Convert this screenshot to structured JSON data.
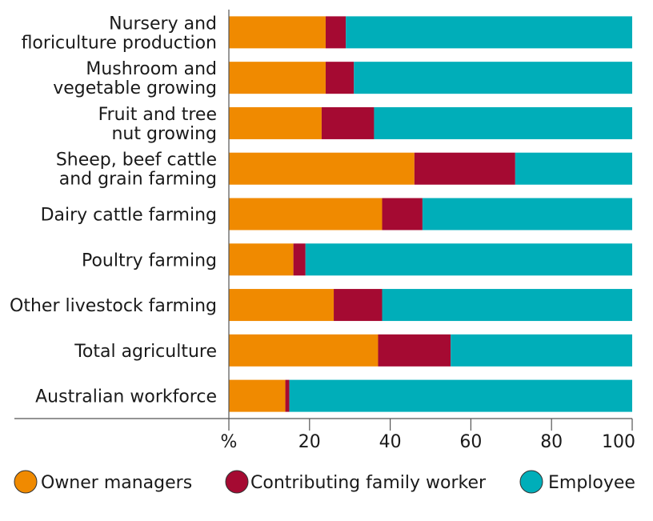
{
  "chart_data": {
    "type": "bar",
    "orientation": "horizontal",
    "stacked": true,
    "categories": [
      [
        "Nursery and",
        "floriculture production"
      ],
      [
        "Mushroom and",
        "vegetable growing"
      ],
      [
        "Fruit and tree",
        "nut growing"
      ],
      [
        "Sheep, beef cattle",
        "and grain farming"
      ],
      [
        "Dairy cattle farming"
      ],
      [
        "Poultry farming"
      ],
      [
        "Other livestock farming"
      ],
      [
        "Total agriculture"
      ],
      [
        "Australian workforce"
      ]
    ],
    "series": [
      {
        "name": "Owner managers",
        "color": "#f08a00",
        "values": [
          24,
          24,
          23,
          46,
          38,
          16,
          26,
          37,
          14
        ]
      },
      {
        "name": "Contributing family worker",
        "color": "#a50a32",
        "values": [
          5,
          7,
          13,
          25,
          10,
          3,
          12,
          18,
          1
        ]
      },
      {
        "name": "Employee",
        "color": "#00aeb9",
        "values": [
          71,
          69,
          64,
          29,
          52,
          81,
          62,
          45,
          85
        ]
      }
    ],
    "x_axis": {
      "unit_label": "%",
      "ticks": [
        "20",
        "40",
        "60",
        "80",
        "100"
      ],
      "tick_values": [
        20,
        40,
        60,
        80,
        100
      ],
      "range": [
        0,
        100
      ]
    },
    "legend_position": "bottom",
    "grid": false
  }
}
